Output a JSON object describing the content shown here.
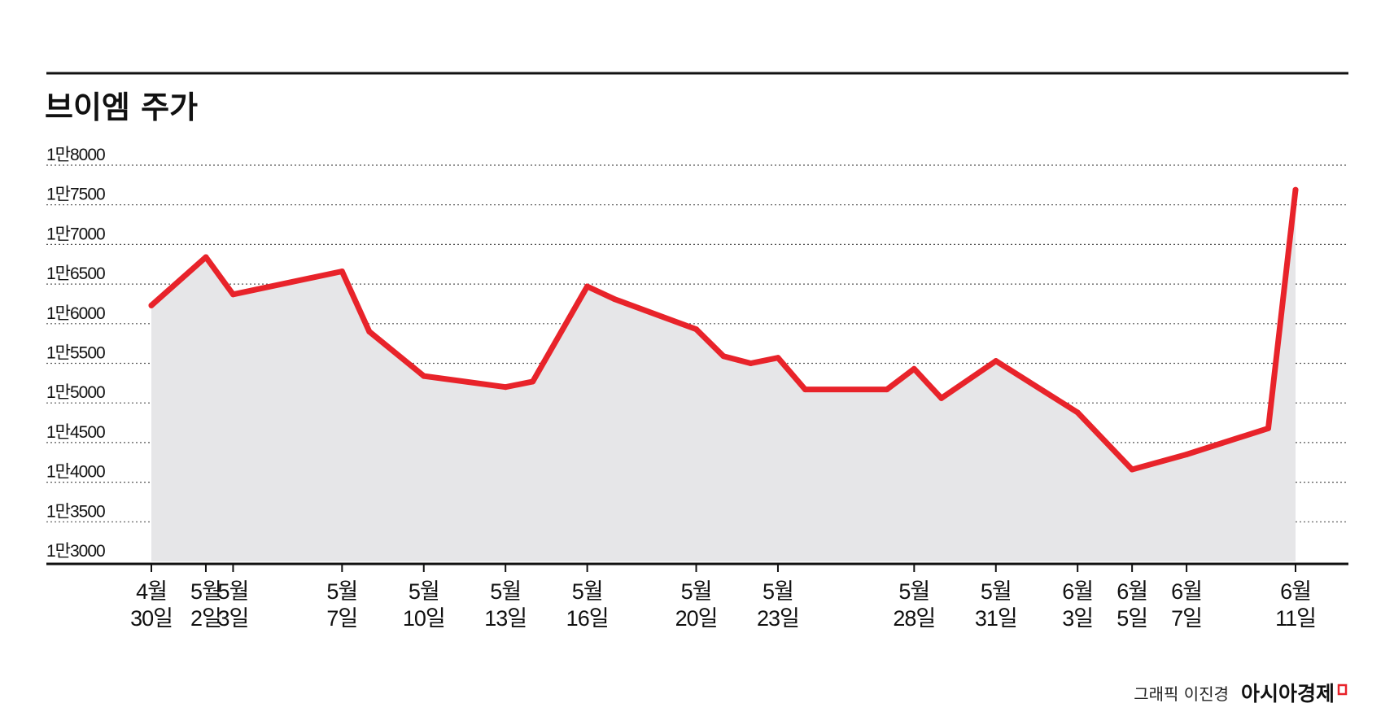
{
  "chart_data": {
    "type": "area",
    "title": "브이엠 주가",
    "xlabel": "",
    "ylabel": "",
    "ylim": [
      13000,
      18000
    ],
    "grid": true,
    "yticks": [
      {
        "value": 18000,
        "label": "1만8000"
      },
      {
        "value": 17500,
        "label": "1만7500"
      },
      {
        "value": 17000,
        "label": "1만7000"
      },
      {
        "value": 16500,
        "label": "1만6500"
      },
      {
        "value": 16000,
        "label": "1만6000"
      },
      {
        "value": 15500,
        "label": "1만5500"
      },
      {
        "value": 15000,
        "label": "1만5000"
      },
      {
        "value": 14500,
        "label": "1만4500"
      },
      {
        "value": 14000,
        "label": "1만4000"
      },
      {
        "value": 13500,
        "label": "1만3500"
      },
      {
        "value": 13000,
        "label": "1만3000"
      }
    ],
    "xticks": [
      {
        "date": "2024-04-30",
        "month": "4월",
        "day": "30일"
      },
      {
        "date": "2024-05-02",
        "month": "5월",
        "day": "2일"
      },
      {
        "date": "2024-05-03",
        "month": "5월",
        "day": "3일"
      },
      {
        "date": "2024-05-07",
        "month": "5월",
        "day": "7일"
      },
      {
        "date": "2024-05-10",
        "month": "5월",
        "day": "10일"
      },
      {
        "date": "2024-05-13",
        "month": "5월",
        "day": "13일"
      },
      {
        "date": "2024-05-16",
        "month": "5월",
        "day": "16일"
      },
      {
        "date": "2024-05-20",
        "month": "5월",
        "day": "20일"
      },
      {
        "date": "2024-05-23",
        "month": "5월",
        "day": "23일"
      },
      {
        "date": "2024-05-28",
        "month": "5월",
        "day": "28일"
      },
      {
        "date": "2024-05-31",
        "month": "5월",
        "day": "31일"
      },
      {
        "date": "2024-06-03",
        "month": "6월",
        "day": "3일"
      },
      {
        "date": "2024-06-05",
        "month": "6월",
        "day": "5일"
      },
      {
        "date": "2024-06-07",
        "month": "6월",
        "day": "7일"
      },
      {
        "date": "2024-06-11",
        "month": "6월",
        "day": "11일"
      }
    ],
    "series": [
      {
        "color": "#e8232a",
        "fill": "#e6e6e8",
        "points": [
          {
            "x": "2024-04-30",
            "y": 16230
          },
          {
            "x": "2024-05-02",
            "y": 16840
          },
          {
            "x": "2024-05-03",
            "y": 16370
          },
          {
            "x": "2024-05-07",
            "y": 16660
          },
          {
            "x": "2024-05-08",
            "y": 15900
          },
          {
            "x": "2024-05-10",
            "y": 15340
          },
          {
            "x": "2024-05-13",
            "y": 15200
          },
          {
            "x": "2024-05-14",
            "y": 15270
          },
          {
            "x": "2024-05-16",
            "y": 16470
          },
          {
            "x": "2024-05-17",
            "y": 16310
          },
          {
            "x": "2024-05-20",
            "y": 15930
          },
          {
            "x": "2024-05-21",
            "y": 15590
          },
          {
            "x": "2024-05-22",
            "y": 15500
          },
          {
            "x": "2024-05-23",
            "y": 15570
          },
          {
            "x": "2024-05-24",
            "y": 15170
          },
          {
            "x": "2024-05-27",
            "y": 15170
          },
          {
            "x": "2024-05-28",
            "y": 15430
          },
          {
            "x": "2024-05-29",
            "y": 15060
          },
          {
            "x": "2024-05-31",
            "y": 15530
          },
          {
            "x": "2024-06-03",
            "y": 14880
          },
          {
            "x": "2024-06-05",
            "y": 14160
          },
          {
            "x": "2024-06-07",
            "y": 14350
          },
          {
            "x": "2024-06-10",
            "y": 14680
          },
          {
            "x": "2024-06-11",
            "y": 17690
          }
        ]
      }
    ]
  },
  "credit": {
    "designer": "그래픽 이진경",
    "brand": "아시아경제"
  },
  "colors": {
    "line": "#e8232a",
    "area": "#e6e6e8",
    "grid": "#555555",
    "axis": "#111111",
    "brand_mark": "#e8232a"
  }
}
